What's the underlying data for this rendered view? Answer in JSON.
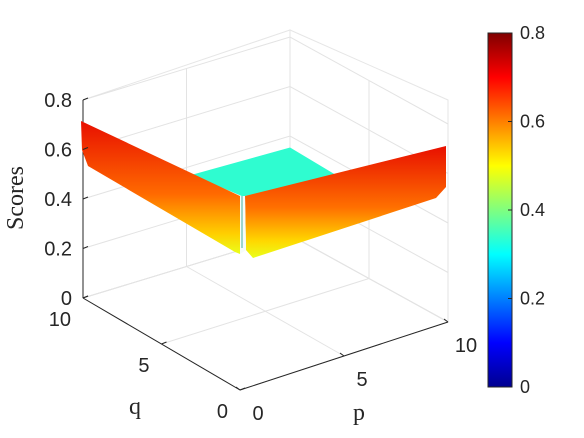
{
  "chart_data": {
    "type": "surface3d",
    "xlabel": "p",
    "ylabel": "q",
    "zlabel": "Scores",
    "xlim": [
      0,
      10
    ],
    "ylim": [
      0,
      10
    ],
    "zlim": [
      0,
      0.8
    ],
    "x_ticks": [
      "0",
      "5",
      "10"
    ],
    "y_ticks": [
      "0",
      "5",
      "10"
    ],
    "z_ticks": [
      "0",
      "0.2",
      "0.4",
      "0.6",
      "0.8"
    ],
    "colormap": "jet",
    "colorbar": {
      "range": [
        0,
        0.8
      ],
      "ticks": [
        "0",
        "0.2",
        "0.4",
        "0.6",
        "0.8"
      ],
      "placement": "right"
    },
    "grid": true,
    "surface": {
      "plateau_score": 0.42,
      "edge_p0_score_at_q10": 0.72,
      "edge_q0_score_at_p10": 0.61,
      "corner_score": 0.2,
      "ridge_bottom_score": 0.5
    }
  }
}
